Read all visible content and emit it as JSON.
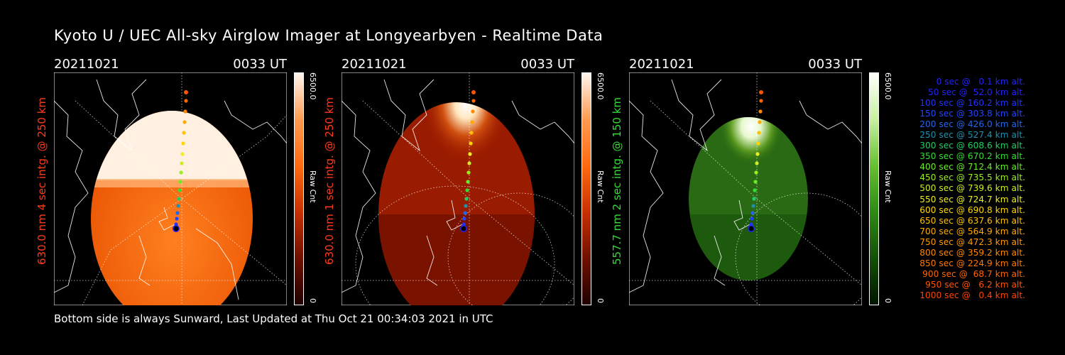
{
  "title": "Kyoto U / UEC All-sky Airglow Imager at Longyearbyen - Realtime Data",
  "footer": "Bottom side is always Sunward, Last Updated at Thu Oct 21 00:34:03 2021 in UTC",
  "panels": [
    {
      "date": "20211021",
      "time": "0033 UT",
      "side_label": "630.0 nm 4 sec intg. @ 250 km",
      "label_color": "#ff3a1a",
      "cbar_max": "6500.0",
      "cbar_unit": "Raw Cnt",
      "cbar_min": "0",
      "cmap": "red",
      "glow": "upper"
    },
    {
      "date": "20211021",
      "time": "0033 UT",
      "side_label": "630.0 nm 1 sec intg. @ 250 km",
      "label_color": "#ff3a1a",
      "cbar_max": "6500.0",
      "cbar_unit": "Raw Cnt",
      "cbar_min": "0",
      "cmap": "red",
      "glow": "aurora"
    },
    {
      "date": "20211021",
      "time": "0033 UT",
      "side_label": "557.7 nm 2 sec intg. @ 150 km",
      "label_color": "#33dd33",
      "cbar_max": "6500.0",
      "cbar_unit": "Raw Cnt",
      "cbar_min": "0",
      "cmap": "green",
      "glow": "aurora"
    }
  ],
  "legend": [
    {
      "text": "0 sec @   0.1 km alt.",
      "color": "#2222ff"
    },
    {
      "text": "50 sec @  52.0 km alt.",
      "color": "#2222ff"
    },
    {
      "text": "100 sec @ 160.2 km alt.",
      "color": "#2233ff"
    },
    {
      "text": "150 sec @ 303.8 km alt.",
      "color": "#2244ff"
    },
    {
      "text": "200 sec @ 426.0 km alt.",
      "color": "#2266ee"
    },
    {
      "text": "250 sec @ 527.4 km alt.",
      "color": "#1e90b0"
    },
    {
      "text": "300 sec @ 608.6 km alt.",
      "color": "#22cc66"
    },
    {
      "text": "350 sec @ 670.2 km alt.",
      "color": "#33dd33"
    },
    {
      "text": "400 sec @ 712.4 km alt.",
      "color": "#66ee22"
    },
    {
      "text": "450 sec @ 735.5 km alt.",
      "color": "#99ee22"
    },
    {
      "text": "500 sec @ 739.6 km alt.",
      "color": "#ccee22"
    },
    {
      "text": "550 sec @ 724.7 km alt.",
      "color": "#eeee22"
    },
    {
      "text": "600 sec @ 690.8 km alt.",
      "color": "#ffd700"
    },
    {
      "text": "650 sec @ 637.6 km alt.",
      "color": "#ffc000"
    },
    {
      "text": "700 sec @ 564.9 km alt.",
      "color": "#ffaa00"
    },
    {
      "text": "750 sec @ 472.3 km alt.",
      "color": "#ff9900"
    },
    {
      "text": "800 sec @ 359.2 km alt.",
      "color": "#ff8800"
    },
    {
      "text": "850 sec @ 224.9 km alt.",
      "color": "#ff7700"
    },
    {
      "text": "900 sec @  68.7 km alt.",
      "color": "#ff6600"
    },
    {
      "text": "950 sec @   6.2 km alt.",
      "color": "#ff5500"
    },
    {
      "text": "1000 sec @   0.4 km alt.",
      "color": "#ff4400"
    }
  ]
}
